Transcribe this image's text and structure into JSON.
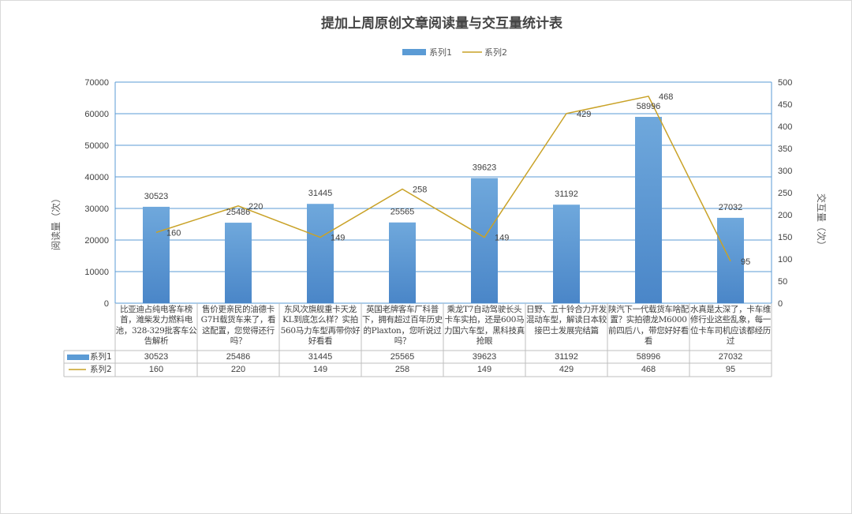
{
  "chart_data": {
    "type": "bar",
    "title": "提加上周原创文章阅读量与交互量统计表",
    "ylabel": "阅读量（次）",
    "y2label": "交互量（次）",
    "ylim": [
      0,
      70000
    ],
    "y2lim": [
      0,
      500
    ],
    "yticks": [
      "0",
      "10000",
      "20000",
      "30000",
      "40000",
      "50000",
      "60000",
      "70000"
    ],
    "y2ticks": [
      "0",
      "50",
      "100",
      "150",
      "200",
      "250",
      "300",
      "350",
      "400",
      "450",
      "500"
    ],
    "categories": [
      "比亚迪占纯电客车榜首，潍柴发力燃料电池，328-329批客车公告解析",
      "售价更亲民的油德卡G7H载货车来了，看这配置，您觉得还行吗？",
      "东风次旗舰重卡天龙KL到底怎么样？实拍560马力车型再带你好好看看",
      "英国老牌客车厂科普下，拥有超过百年历史的Plaxton，您听说过吗？",
      "乘龙T7自动驾驶长头卡车实拍，还是600马力国六车型，黑科技真抢眼",
      "日野、五十铃合力开发混动车型，解读日本较接巴士发展完结篇",
      "陕汽下一代载货车啥配置？实拍德龙M6000前四后八，带您好好看看",
      "水真是太深了，卡车维修行业这些乱象，每一位卡车司机应该都经历过"
    ],
    "series": [
      {
        "name": "系列1",
        "type": "bar",
        "axis": "left",
        "color": "#5b9bd5",
        "values": [
          30523,
          25486,
          31445,
          25565,
          39623,
          31192,
          58996,
          27032
        ],
        "labels": [
          "30523",
          "25486",
          "31445",
          "25565",
          "39623",
          "31192",
          "58996",
          "27032"
        ]
      },
      {
        "name": "系列2",
        "type": "line",
        "axis": "right",
        "color": "#c9a227",
        "values": [
          160,
          220,
          149,
          258,
          149,
          429,
          468,
          95
        ],
        "labels": [
          "160",
          "220",
          "149",
          "258",
          "149",
          "429",
          "468",
          "95"
        ]
      }
    ]
  }
}
